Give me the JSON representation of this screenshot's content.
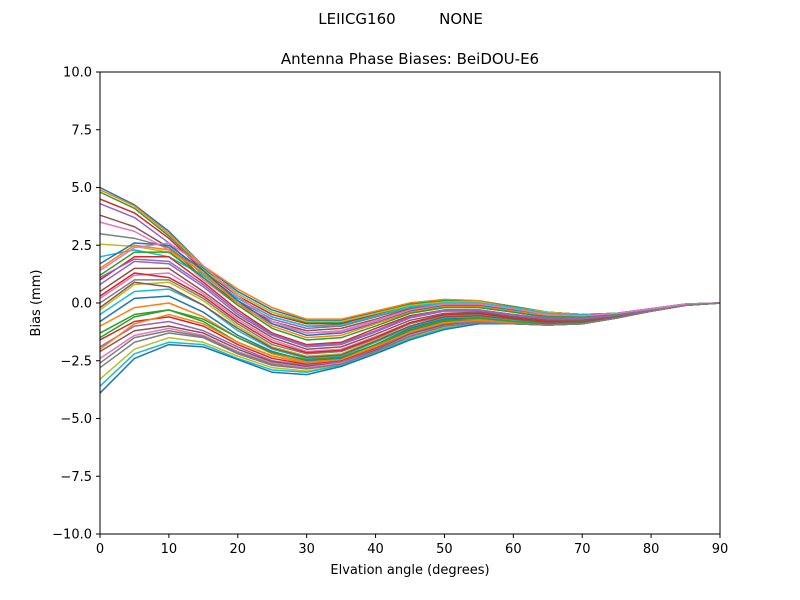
{
  "figure": {
    "suptitle_left": "LEIICG160",
    "suptitle_right": "NONE"
  },
  "chart_data": {
    "type": "line",
    "title": "Antenna Phase Biases: BeiDOU-E6",
    "xlabel": "Elvation angle (degrees)",
    "ylabel": "Bias (mm)",
    "xlim": [
      0,
      90
    ],
    "ylim": [
      -10,
      10
    ],
    "xticks": [
      0,
      10,
      20,
      30,
      40,
      50,
      60,
      70,
      80,
      90
    ],
    "xtick_labels": [
      "0",
      "10",
      "20",
      "30",
      "40",
      "50",
      "60",
      "70",
      "80",
      "90"
    ],
    "yticks": [
      -10,
      -7.5,
      -5,
      -2.5,
      0,
      2.5,
      5,
      7.5,
      10
    ],
    "ytick_labels": [
      "−10.0",
      "−7.5",
      "−5.0",
      "−2.5",
      "0.0",
      "2.5",
      "5.0",
      "7.5",
      "10.0"
    ],
    "grid": false,
    "legend": "none",
    "palette": [
      "#1f77b4",
      "#ff7f0e",
      "#2ca02c",
      "#d62728",
      "#9467bd",
      "#8c564b",
      "#e377c2",
      "#7f7f7f",
      "#bcbd22",
      "#17becf"
    ],
    "x": [
      0,
      5,
      10,
      15,
      20,
      25,
      30,
      35,
      40,
      45,
      50,
      55,
      60,
      65,
      70,
      75,
      80,
      85,
      90
    ],
    "series": [
      {
        "values": [
          5.0,
          4.25,
          3.1,
          1.6,
          0.5,
          -0.3,
          -0.75,
          -0.75,
          -0.4,
          0.0,
          0.15,
          0.1,
          -0.15,
          -0.4,
          -0.5,
          -0.45,
          -0.25,
          -0.05,
          0.0
        ]
      },
      {
        "values": [
          4.9,
          4.2,
          3.0,
          1.6,
          0.6,
          -0.2,
          -0.7,
          -0.7,
          -0.35,
          0.0,
          0.15,
          0.1,
          -0.15,
          -0.4,
          -0.5,
          -0.45,
          -0.25,
          -0.05,
          0.0
        ]
      },
      {
        "values": [
          4.8,
          4.1,
          2.9,
          1.5,
          0.4,
          -0.4,
          -0.85,
          -0.85,
          -0.45,
          -0.05,
          0.1,
          0.05,
          -0.15,
          -0.4,
          -0.5,
          -0.45,
          -0.25,
          -0.05,
          0.0
        ]
      },
      {
        "values": [
          4.5,
          3.9,
          2.8,
          1.4,
          0.3,
          -0.5,
          -0.9,
          -0.9,
          -0.5,
          -0.1,
          0.05,
          0.05,
          -0.2,
          -0.4,
          -0.5,
          -0.45,
          -0.25,
          -0.05,
          0.0
        ]
      },
      {
        "values": [
          4.3,
          3.7,
          2.6,
          1.2,
          0.1,
          -0.7,
          -1.1,
          -1.0,
          -0.6,
          -0.2,
          0.0,
          0.0,
          -0.2,
          -0.45,
          -0.55,
          -0.45,
          -0.25,
          -0.05,
          0.0
        ]
      },
      {
        "values": [
          3.8,
          3.3,
          2.4,
          1.1,
          0.0,
          -0.8,
          -1.2,
          -1.1,
          -0.7,
          -0.25,
          -0.05,
          -0.05,
          -0.25,
          -0.45,
          -0.55,
          -0.45,
          -0.25,
          -0.05,
          0.0
        ]
      },
      {
        "values": [
          3.5,
          3.1,
          2.3,
          1.0,
          -0.1,
          -0.9,
          -1.3,
          -1.2,
          -0.75,
          -0.3,
          -0.1,
          -0.1,
          -0.3,
          -0.5,
          -0.55,
          -0.45,
          -0.25,
          -0.05,
          0.0
        ]
      },
      {
        "values": [
          3.0,
          2.8,
          2.4,
          1.3,
          0.2,
          -0.6,
          -1.0,
          -1.0,
          -0.6,
          -0.2,
          0.0,
          0.0,
          -0.2,
          -0.45,
          -0.5,
          -0.45,
          -0.25,
          -0.05,
          0.0
        ]
      },
      {
        "values": [
          2.55,
          2.45,
          2.2,
          1.4,
          0.4,
          -0.4,
          -0.8,
          -0.8,
          -0.45,
          -0.1,
          0.05,
          0.05,
          -0.2,
          -0.4,
          -0.5,
          -0.45,
          -0.25,
          -0.05,
          0.0
        ]
      },
      {
        "values": [
          2.0,
          2.3,
          2.0,
          1.2,
          0.2,
          -0.6,
          -1.0,
          -0.95,
          -0.55,
          -0.15,
          0.0,
          0.0,
          -0.2,
          -0.45,
          -0.5,
          -0.45,
          -0.25,
          -0.05,
          0.0
        ]
      },
      {
        "values": [
          1.7,
          2.6,
          2.5,
          1.4,
          0.1,
          -0.9,
          -1.4,
          -1.3,
          -0.85,
          -0.35,
          -0.1,
          -0.1,
          -0.3,
          -0.5,
          -0.55,
          -0.45,
          -0.25,
          -0.05,
          0.0
        ]
      },
      {
        "values": [
          1.5,
          2.5,
          2.3,
          1.3,
          0.0,
          -1.0,
          -1.5,
          -1.4,
          -0.9,
          -0.4,
          -0.15,
          -0.15,
          -0.35,
          -0.55,
          -0.6,
          -0.5,
          -0.3,
          -0.1,
          0.0
        ]
      },
      {
        "values": [
          1.2,
          2.2,
          2.2,
          1.1,
          -0.1,
          -1.1,
          -1.6,
          -1.5,
          -1.0,
          -0.45,
          -0.2,
          -0.2,
          -0.4,
          -0.6,
          -0.6,
          -0.5,
          -0.3,
          -0.1,
          0.0
        ]
      },
      {
        "values": [
          1.0,
          2.0,
          2.0,
          0.9,
          -0.3,
          -1.3,
          -1.8,
          -1.7,
          -1.1,
          -0.55,
          -0.3,
          -0.3,
          -0.5,
          -0.65,
          -0.65,
          -0.55,
          -0.3,
          -0.1,
          0.0
        ]
      },
      {
        "values": [
          0.8,
          1.8,
          1.7,
          0.7,
          -0.5,
          -1.4,
          -1.9,
          -1.8,
          -1.25,
          -0.65,
          -0.35,
          -0.35,
          -0.55,
          -0.7,
          -0.7,
          -0.55,
          -0.3,
          -0.1,
          0.0
        ]
      },
      {
        "values": [
          0.5,
          1.5,
          1.5,
          0.5,
          -0.6,
          -1.5,
          -2.0,
          -1.9,
          -1.35,
          -0.75,
          -0.45,
          -0.4,
          -0.6,
          -0.75,
          -0.75,
          -0.6,
          -0.35,
          -0.1,
          0.0
        ]
      },
      {
        "values": [
          0.2,
          1.2,
          1.3,
          0.4,
          -0.7,
          -1.6,
          -2.1,
          -2.0,
          -1.45,
          -0.85,
          -0.5,
          -0.45,
          -0.65,
          -0.8,
          -0.8,
          -0.6,
          -0.35,
          -0.1,
          0.0
        ]
      },
      {
        "values": [
          0.0,
          1.0,
          1.0,
          0.2,
          -0.9,
          -1.8,
          -2.2,
          -2.1,
          -1.55,
          -0.9,
          -0.55,
          -0.5,
          -0.65,
          -0.8,
          -0.8,
          -0.6,
          -0.35,
          -0.1,
          0.0
        ]
      },
      {
        "values": [
          -0.3,
          0.8,
          0.9,
          0.1,
          -1.0,
          -1.9,
          -2.3,
          -2.2,
          -1.6,
          -1.0,
          -0.6,
          -0.55,
          -0.7,
          -0.85,
          -0.8,
          -0.6,
          -0.35,
          -0.1,
          0.0
        ]
      },
      {
        "values": [
          -0.5,
          0.5,
          0.6,
          -0.1,
          -1.2,
          -2.0,
          -2.4,
          -2.3,
          -1.7,
          -1.05,
          -0.65,
          -0.6,
          -0.75,
          -0.85,
          -0.85,
          -0.65,
          -0.35,
          -0.1,
          0.0
        ]
      },
      {
        "values": [
          -0.8,
          0.2,
          0.3,
          -0.4,
          -1.4,
          -2.1,
          -2.5,
          -2.4,
          -1.8,
          -1.1,
          -0.7,
          -0.65,
          -0.8,
          -0.9,
          -0.85,
          -0.65,
          -0.35,
          -0.1,
          0.0
        ]
      },
      {
        "values": [
          -1.0,
          -0.2,
          0.0,
          -0.6,
          -1.5,
          -2.2,
          -2.55,
          -2.45,
          -1.85,
          -1.15,
          -0.75,
          -0.7,
          -0.8,
          -0.9,
          -0.85,
          -0.65,
          -0.35,
          -0.1,
          0.0
        ]
      },
      {
        "values": [
          -1.3,
          -0.5,
          -0.3,
          -0.8,
          -1.7,
          -2.3,
          -2.6,
          -2.5,
          -1.9,
          -1.2,
          -0.8,
          -0.75,
          -0.85,
          -0.9,
          -0.9,
          -0.65,
          -0.35,
          -0.1,
          0.0
        ]
      },
      {
        "values": [
          -1.6,
          -0.8,
          -0.6,
          -1.0,
          -1.8,
          -2.4,
          -2.65,
          -2.5,
          -1.95,
          -1.25,
          -0.85,
          -0.75,
          -0.85,
          -0.95,
          -0.9,
          -0.65,
          -0.35,
          -0.1,
          0.0
        ]
      },
      {
        "values": [
          -1.9,
          -1.0,
          -0.8,
          -1.2,
          -1.9,
          -2.5,
          -2.7,
          -2.55,
          -2.0,
          -1.3,
          -0.9,
          -0.8,
          -0.85,
          -0.95,
          -0.9,
          -0.65,
          -0.35,
          -0.1,
          0.0
        ]
      },
      {
        "values": [
          -2.1,
          -1.2,
          -1.0,
          -1.3,
          -2.0,
          -2.55,
          -2.75,
          -2.6,
          -2.05,
          -1.35,
          -0.95,
          -0.85,
          -0.9,
          -0.95,
          -0.9,
          -0.65,
          -0.35,
          -0.1,
          0.0
        ]
      },
      {
        "values": [
          -2.4,
          -1.4,
          -1.1,
          -1.4,
          -2.1,
          -2.6,
          -2.8,
          -2.6,
          -2.1,
          -1.4,
          -1.0,
          -0.85,
          -0.9,
          -0.95,
          -0.9,
          -0.65,
          -0.35,
          -0.1,
          0.0
        ]
      },
      {
        "values": [
          -2.8,
          -1.7,
          -1.3,
          -1.5,
          -2.2,
          -2.7,
          -2.85,
          -2.65,
          -2.1,
          -1.45,
          -1.05,
          -0.9,
          -0.9,
          -0.95,
          -0.9,
          -0.65,
          -0.35,
          -0.1,
          0.0
        ]
      },
      {
        "values": [
          -3.3,
          -2.0,
          -1.5,
          -1.7,
          -2.3,
          -2.8,
          -2.95,
          -2.7,
          -2.15,
          -1.5,
          -1.05,
          -0.9,
          -0.9,
          -0.95,
          -0.9,
          -0.65,
          -0.35,
          -0.1,
          0.0
        ]
      },
      {
        "values": [
          -3.6,
          -2.2,
          -1.7,
          -1.8,
          -2.4,
          -2.9,
          -3.0,
          -2.7,
          -2.15,
          -1.55,
          -1.1,
          -0.9,
          -0.9,
          -0.95,
          -0.9,
          -0.65,
          -0.35,
          -0.1,
          0.0
        ]
      },
      {
        "values": [
          -3.9,
          -2.4,
          -1.8,
          -1.9,
          -2.45,
          -3.0,
          -3.1,
          -2.75,
          -2.2,
          -1.6,
          -1.15,
          -0.9,
          -0.9,
          -0.95,
          -0.9,
          -0.65,
          -0.35,
          -0.1,
          0.0
        ]
      },
      {
        "values": [
          -2.0,
          -0.9,
          -0.5,
          -0.9,
          -1.7,
          -2.3,
          -2.6,
          -2.45,
          -1.9,
          -1.25,
          -0.85,
          -0.75,
          -0.85,
          -0.9,
          -0.85,
          -0.65,
          -0.35,
          -0.1,
          0.0
        ]
      },
      {
        "values": [
          -1.5,
          -0.6,
          -0.3,
          -0.7,
          -1.5,
          -2.15,
          -2.45,
          -2.35,
          -1.8,
          -1.15,
          -0.75,
          -0.65,
          -0.8,
          -0.9,
          -0.85,
          -0.65,
          -0.35,
          -0.1,
          0.0
        ]
      },
      {
        "values": [
          0.3,
          1.3,
          1.1,
          0.3,
          -0.8,
          -1.7,
          -2.15,
          -2.05,
          -1.5,
          -0.85,
          -0.5,
          -0.45,
          -0.65,
          -0.8,
          -0.8,
          -0.6,
          -0.35,
          -0.1,
          0.0
        ]
      },
      {
        "values": [
          1.1,
          1.9,
          1.8,
          0.8,
          -0.4,
          -1.35,
          -1.85,
          -1.75,
          -1.2,
          -0.6,
          -0.3,
          -0.3,
          -0.5,
          -0.65,
          -0.65,
          -0.55,
          -0.3,
          -0.1,
          0.0
        ]
      },
      {
        "values": [
          -0.2,
          0.9,
          0.7,
          -0.1,
          -1.1,
          -1.95,
          -2.35,
          -2.25,
          -1.65,
          -1.0,
          -0.6,
          -0.55,
          -0.7,
          -0.85,
          -0.8,
          -0.6,
          -0.35,
          -0.1,
          0.0
        ]
      },
      {
        "values": [
          1.4,
          2.4,
          2.6,
          1.6,
          0.3,
          -0.8,
          -1.3,
          -1.25,
          -0.8,
          -0.3,
          -0.05,
          -0.05,
          -0.25,
          -0.5,
          -0.55,
          -0.45,
          -0.25,
          -0.05,
          0.0
        ]
      },
      {
        "values": [
          -2.6,
          -1.5,
          -1.2,
          -1.45,
          -2.15,
          -2.65,
          -2.85,
          -2.65,
          -2.1,
          -1.45,
          -1.0,
          -0.85,
          -0.9,
          -0.95,
          -0.9,
          -0.65,
          -0.35,
          -0.1,
          0.0
        ]
      }
    ]
  }
}
